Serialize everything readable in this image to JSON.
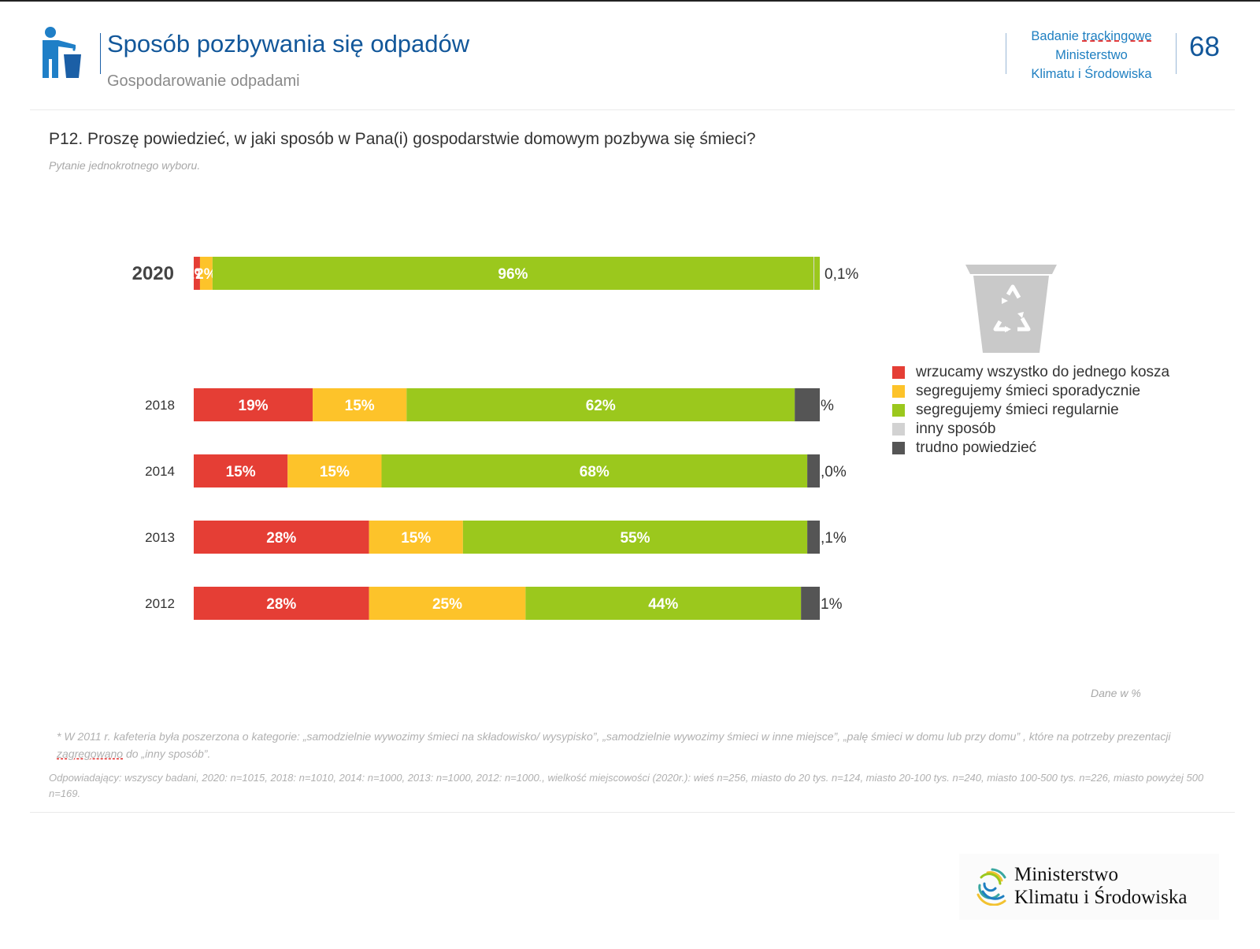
{
  "header": {
    "title": "Sposób pozbywania się odpadów",
    "subtitle": "Gospodarowanie odpadami",
    "badanie_prefix": "Badanie ",
    "badanie_word": "trackingowe",
    "ministry_line1": "Ministerstwo",
    "ministry_line2": "Klimatu i Środowiska",
    "page_number": "68"
  },
  "question": {
    "text": "P12. Proszę powiedzieć, w jaki sposób w Pana(i) gospodarstwie domowym pozbywa się śmieci?",
    "note": "Pytanie jednokrotnego wyboru."
  },
  "chart_data": {
    "type": "bar",
    "orientation": "horizontal",
    "stacked": true,
    "categories": [
      "2020",
      "2018",
      "2014",
      "2013",
      "2012"
    ],
    "series": [
      {
        "name": "wrzucamy wszystko do jednego kosza",
        "color": "#e53e35",
        "values": [
          1,
          19,
          15,
          28,
          28
        ],
        "labels": [
          "1%",
          "19%",
          "15%",
          "28%",
          "28%"
        ]
      },
      {
        "name": "segregujemy śmieci sporadycznie",
        "color": "#fdc32a",
        "values": [
          2,
          15,
          15,
          15,
          25
        ],
        "labels": [
          "2%",
          "15%",
          "15%",
          "15%",
          "25%"
        ]
      },
      {
        "name": "segregujemy śmieci regularnie",
        "color": "#9bc81d",
        "values": [
          96,
          62,
          68,
          55,
          44
        ],
        "labels": [
          "96%",
          "62%",
          "68%",
          "55%",
          "44%"
        ]
      },
      {
        "name": "inny sposób",
        "color": "#d2d2d2",
        "values": [
          0.1,
          0,
          0,
          0,
          0
        ],
        "labels": [
          "",
          "",
          "",
          "",
          ""
        ]
      },
      {
        "name": "trudno powiedzieć",
        "color": "#555555",
        "values": [
          0,
          4,
          2,
          2,
          3
        ],
        "labels": [
          "",
          "",
          "",
          "",
          ""
        ]
      }
    ],
    "end_labels": [
      "0,1%",
      "%",
      ",0%",
      ",1%",
      "1%"
    ],
    "xlim": [
      0,
      100
    ],
    "unit_note": "Dane w %",
    "legend_position": "right"
  },
  "footnotes": {
    "kafeteria_a": "* W 2011 r. kafeteria była poszerzona o kategorie: „samodzielnie wywozimy śmieci na składowisko/ wysypisko”, „samodzielnie wywozimy śmieci w inne miejsce”, „palę śmieci w domu lub przy domu” , które na potrzeby prezentacji ",
    "kafeteria_ul": "zagregowano",
    "kafeteria_b": " do „inny sposób”.",
    "respondents": "Odpowiadający: wszyscy badani, 2020: n=1015, 2018: n=1010, 2014: n=1000, 2013: n=1000, 2012: n=1000., wielkość miejscowości (2020r.): wieś n=256, miasto do 20 tys. n=124, miasto 20-100 tys. n=240, miasto 100-500 tys. n=226, miasto powyżej 500 n=169."
  },
  "logo": {
    "line1": "Ministerstwo",
    "line2": "Klimatu i Środowiska"
  }
}
